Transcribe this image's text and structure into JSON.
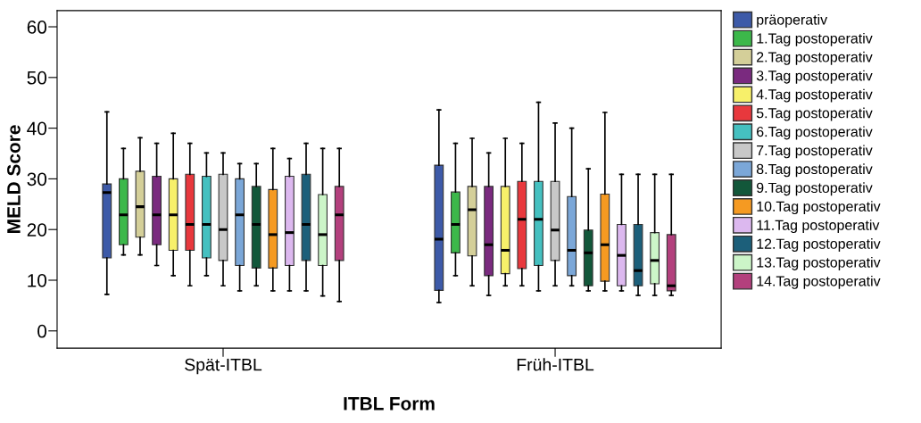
{
  "chart_data": {
    "type": "box",
    "xlabel": "ITBL Form",
    "ylabel": "MELD Score",
    "categories": [
      "Spät-ITBL",
      "Früh-ITBL"
    ],
    "ylim": [
      -3.4,
      63.2
    ],
    "yticks": [
      0,
      10,
      20,
      30,
      40,
      50,
      60
    ],
    "grid": false,
    "legend": "right",
    "series": [
      {
        "name": "präoperativ",
        "color": "#3d5aa8",
        "boxes": [
          {
            "low": 7.2,
            "q1": 14.4,
            "median": 27.3,
            "q3": 29.0,
            "high": 43.2
          },
          {
            "low": 5.6,
            "q1": 8.0,
            "median": 18.1,
            "q3": 32.7,
            "high": 43.6
          }
        ]
      },
      {
        "name": "1.Tag postoperativ",
        "color": "#3cb84a",
        "boxes": [
          {
            "low": 15.0,
            "q1": 17.0,
            "median": 22.9,
            "q3": 30.0,
            "high": 36.0
          },
          {
            "low": 10.9,
            "q1": 15.4,
            "median": 21.0,
            "q3": 27.4,
            "high": 37.0
          }
        ]
      },
      {
        "name": "2.Tag postoperativ",
        "color": "#d4cf99",
        "boxes": [
          {
            "low": 15.0,
            "q1": 18.5,
            "median": 24.5,
            "q3": 31.5,
            "high": 38.1
          },
          {
            "low": 8.9,
            "q1": 14.8,
            "median": 23.9,
            "q3": 28.5,
            "high": 38.0
          }
        ]
      },
      {
        "name": "3.Tag postoperativ",
        "color": "#7a2a7f",
        "boxes": [
          {
            "low": 12.9,
            "q1": 17.0,
            "median": 22.9,
            "q3": 30.5,
            "high": 37.0
          },
          {
            "low": 7.0,
            "q1": 10.9,
            "median": 17.0,
            "q3": 28.5,
            "high": 35.1
          }
        ]
      },
      {
        "name": "4.Tag postoperativ",
        "color": "#f7f06a",
        "boxes": [
          {
            "low": 10.9,
            "q1": 15.9,
            "median": 22.9,
            "q3": 30.0,
            "high": 39.0
          },
          {
            "low": 8.9,
            "q1": 11.3,
            "median": 15.9,
            "q3": 28.5,
            "high": 38.0
          }
        ]
      },
      {
        "name": "5.Tag postoperativ",
        "color": "#e8383d",
        "boxes": [
          {
            "low": 8.9,
            "q1": 15.9,
            "median": 21.0,
            "q3": 30.9,
            "high": 37.0
          },
          {
            "low": 8.9,
            "q1": 12.3,
            "median": 22.0,
            "q3": 29.5,
            "high": 37.0
          }
        ]
      },
      {
        "name": "6.Tag postoperativ",
        "color": "#45c0c0",
        "boxes": [
          {
            "low": 10.9,
            "q1": 14.4,
            "median": 21.0,
            "q3": 30.5,
            "high": 35.1
          },
          {
            "low": 7.9,
            "q1": 12.9,
            "median": 22.0,
            "q3": 29.5,
            "high": 45.1
          }
        ]
      },
      {
        "name": "7.Tag postoperativ",
        "color": "#c8c8c8",
        "boxes": [
          {
            "low": 8.9,
            "q1": 13.9,
            "median": 20.0,
            "q3": 30.9,
            "high": 35.1
          },
          {
            "low": 8.9,
            "q1": 13.9,
            "median": 19.9,
            "q3": 29.5,
            "high": 41.0
          }
        ]
      },
      {
        "name": "8.Tag postoperativ",
        "color": "#7ba7d8",
        "boxes": [
          {
            "low": 7.9,
            "q1": 12.9,
            "median": 22.9,
            "q3": 30.0,
            "high": 33.0
          },
          {
            "low": 8.9,
            "q1": 10.9,
            "median": 15.9,
            "q3": 26.5,
            "high": 40.0
          }
        ]
      },
      {
        "name": "9.Tag postoperativ",
        "color": "#12573a",
        "boxes": [
          {
            "low": 8.9,
            "q1": 12.4,
            "median": 21.0,
            "q3": 28.5,
            "high": 33.0
          },
          {
            "low": 7.9,
            "q1": 8.9,
            "median": 15.4,
            "q3": 19.9,
            "high": 32.0
          }
        ]
      },
      {
        "name": "10.Tag postoperativ",
        "color": "#f59a22",
        "boxes": [
          {
            "low": 7.9,
            "q1": 12.4,
            "median": 19.0,
            "q3": 27.9,
            "high": 36.0
          },
          {
            "low": 7.9,
            "q1": 9.8,
            "median": 17.0,
            "q3": 27.0,
            "high": 43.1
          }
        ]
      },
      {
        "name": "11.Tag postoperativ",
        "color": "#dcb8ef",
        "boxes": [
          {
            "low": 7.9,
            "q1": 12.9,
            "median": 19.4,
            "q3": 30.5,
            "high": 34.0
          },
          {
            "low": 7.9,
            "q1": 8.9,
            "median": 14.9,
            "q3": 21.0,
            "high": 30.9
          }
        ]
      },
      {
        "name": "12.Tag postoperativ",
        "color": "#1c5f7a",
        "boxes": [
          {
            "low": 7.9,
            "q1": 13.9,
            "median": 21.0,
            "q3": 30.9,
            "high": 37.0
          },
          {
            "low": 7.0,
            "q1": 8.9,
            "median": 11.9,
            "q3": 21.0,
            "high": 30.9
          }
        ]
      },
      {
        "name": "13.Tag postoperativ",
        "color": "#ccf5c8",
        "boxes": [
          {
            "low": 6.9,
            "q1": 12.9,
            "median": 19.0,
            "q3": 26.9,
            "high": 36.0
          },
          {
            "low": 7.0,
            "q1": 9.3,
            "median": 13.9,
            "q3": 19.4,
            "high": 30.9
          }
        ]
      },
      {
        "name": "14.Tag postoperativ",
        "color": "#b3407d",
        "boxes": [
          {
            "low": 5.8,
            "q1": 13.9,
            "median": 22.9,
            "q3": 28.5,
            "high": 36.0
          },
          {
            "low": 7.0,
            "q1": 7.9,
            "median": 8.9,
            "q3": 19.0,
            "high": 30.9
          }
        ]
      }
    ]
  }
}
